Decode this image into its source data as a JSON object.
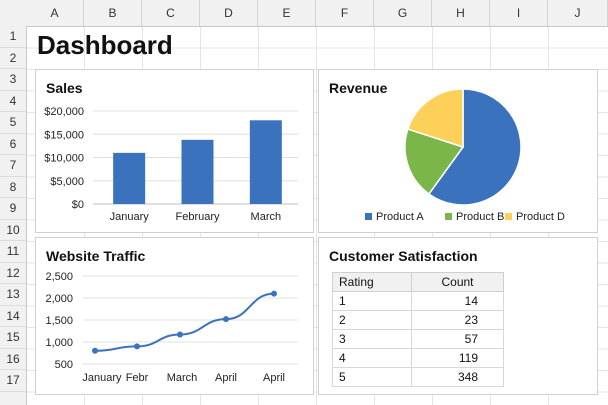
{
  "sheet": {
    "columns": [
      "A",
      "B",
      "C",
      "D",
      "E",
      "F",
      "G",
      "H",
      "I",
      "J"
    ],
    "rows": [
      "1",
      "2",
      "3",
      "4",
      "5",
      "6",
      "7",
      "8",
      "9",
      "10",
      "11",
      "12",
      "13",
      "14",
      "15",
      "16",
      "17"
    ]
  },
  "dashboard": {
    "title": "Dashboard"
  },
  "sales": {
    "title": "Sales",
    "chart_data": {
      "type": "bar",
      "categories": [
        "January",
        "February",
        "March"
      ],
      "values": [
        11000,
        13800,
        18000
      ],
      "ylim": [
        0,
        20000
      ],
      "yticks": [
        0,
        5000,
        10000,
        15000,
        20000
      ],
      "ytick_labels": [
        "$0",
        "$5,000",
        "$10,000",
        "$15,000",
        "$20,000"
      ],
      "color": "#3a72bd",
      "grid": true
    }
  },
  "revenue": {
    "title": "Revenue",
    "chart_data": {
      "type": "pie",
      "labels": [
        "Product A",
        "Product B",
        "Product D"
      ],
      "values": [
        60,
        20,
        20
      ],
      "colors": [
        "#3a72bd",
        "#7ab648",
        "#fdd05a"
      ],
      "legend": "bottom"
    }
  },
  "traffic": {
    "title": "Website Traffic",
    "chart_data": {
      "type": "line",
      "x_labels": [
        "January",
        "Febr",
        "March",
        "April",
        "April"
      ],
      "values": [
        800,
        900,
        1170,
        1520,
        2100
      ],
      "ylim": [
        500,
        2500
      ],
      "yticks": [
        500,
        1000,
        1500,
        2000,
        2500
      ],
      "ytick_labels": [
        "500",
        "1,000",
        "1,500",
        "2,000",
        "2,500"
      ],
      "color": "#3a72bd",
      "grid": true
    }
  },
  "satisfaction": {
    "title": "Customer Satisfaction",
    "headers": [
      "Rating",
      "Count"
    ],
    "rows": [
      [
        "1",
        "14"
      ],
      [
        "2",
        "23"
      ],
      [
        "3",
        "57"
      ],
      [
        "4",
        "119"
      ],
      [
        "5",
        "348"
      ]
    ]
  }
}
